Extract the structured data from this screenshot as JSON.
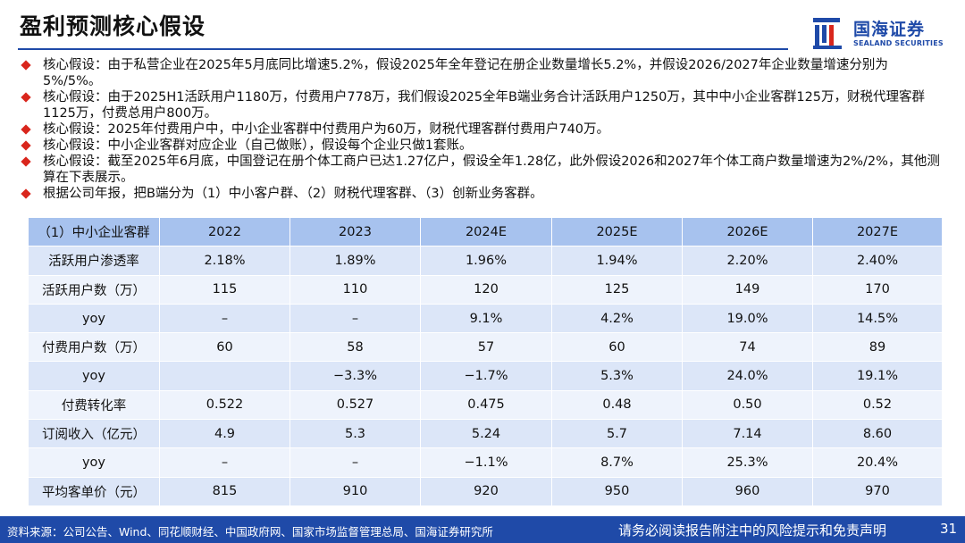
{
  "header": {
    "title": "盈利预测核心假设",
    "logo_cn": "国海证券",
    "logo_en": "SEALAND SECURITIES"
  },
  "bullets": [
    "核心假设：由于私营企业在2025年5月底同比增速5.2%，假设2025年全年登记在册企业数量增长5.2%，并假设2026/2027年企业数量增速分别为5%/5%。",
    "核心假设：由于2025H1活跃用户1180万，付费用户778万，我们假设2025全年B端业务合计活跃用户1250万，其中中小企业客群125万，财税代理客群1125万，付费总用户800万。",
    "核心假设：2025年付费用户中，中小企业客群中付费用户为60万，财税代理客群付费用户740万。",
    "核心假设：中小企业客群对应企业（自己做账），假设每个企业只做1套账。",
    "核心假设：截至2025年6月底，中国登记在册个体工商户已达1.27亿户，假设全年1.28亿，此外假设2026和2027年个体工商户数量增速为2%/2%，其他测算在下表展示。",
    "根据公司年报，把B端分为（1）中小客户群、（2）财税代理客群、（3）创新业务客群。"
  ],
  "table": {
    "header": [
      "（1）中小企业客群",
      "2022",
      "2023",
      "2024E",
      "2025E",
      "2026E",
      "2027E"
    ],
    "rows": [
      [
        "活跃用户渗透率",
        "2.18%",
        "1.89%",
        "1.96%",
        "1.94%",
        "2.20%",
        "2.40%"
      ],
      [
        "活跃用户数（万）",
        "115",
        "110",
        "120",
        "125",
        "149",
        "170"
      ],
      [
        "yoy",
        "–",
        "–",
        "9.1%",
        "4.2%",
        "19.0%",
        "14.5%"
      ],
      [
        "付费用户数（万）",
        "60",
        "58",
        "57",
        "60",
        "74",
        "89"
      ],
      [
        "yoy",
        null,
        "−3.3%",
        "−1.7%",
        "5.3%",
        "24.0%",
        "19.1%"
      ],
      [
        "付费转化率",
        "0.522",
        "0.527",
        "0.475",
        "0.48",
        "0.50",
        "0.52"
      ],
      [
        "订阅收入（亿元）",
        "4.9",
        "5.3",
        "5.24",
        "5.7",
        "7.14",
        "8.60"
      ],
      [
        "yoy",
        "–",
        "–",
        "−1.1%",
        "8.7%",
        "25.3%",
        "20.4%"
      ],
      [
        "平均客单价（元）",
        "815",
        "910",
        "920",
        "950",
        "960",
        "970"
      ]
    ]
  },
  "footer": {
    "source": "资料来源：公司公告、Wind、同花顺财经、中国政府网、国家市场监督管理总局、国海证券研究所",
    "disclaimer": "请务必阅读报告附注中的风险提示和免责声明",
    "page": "31"
  }
}
